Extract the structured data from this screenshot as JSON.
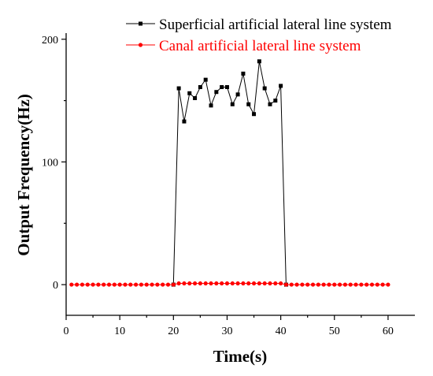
{
  "chart_data": {
    "type": "line",
    "xlabel": "Time(s)",
    "ylabel": "Output Frequency(Hz)",
    "xlim": [
      0,
      65
    ],
    "ylim": [
      -25,
      205
    ],
    "xticks": [
      0,
      10,
      20,
      30,
      40,
      50,
      60
    ],
    "yticks": [
      0,
      100,
      200
    ],
    "grid": false,
    "legend_position": "top-right",
    "series": [
      {
        "name": "Superficial artificial lateral line system",
        "color": "#000000",
        "marker": "square",
        "x": [
          20,
          21,
          22,
          23,
          24,
          25,
          26,
          27,
          28,
          29,
          30,
          31,
          32,
          33,
          34,
          35,
          36,
          37,
          38,
          39,
          40,
          41
        ],
        "y": [
          0,
          160,
          133,
          156,
          152,
          161,
          167,
          146,
          157,
          161,
          161,
          147,
          155,
          172,
          147,
          139,
          182,
          160,
          147,
          150,
          162,
          0
        ]
      },
      {
        "name": "Canal artificial lateral line system",
        "color": "#ff0000",
        "marker": "circle",
        "x": [
          1,
          2,
          3,
          4,
          5,
          6,
          7,
          8,
          9,
          10,
          11,
          12,
          13,
          14,
          15,
          16,
          17,
          18,
          19,
          20,
          21,
          22,
          23,
          24,
          25,
          26,
          27,
          28,
          29,
          30,
          31,
          32,
          33,
          34,
          35,
          36,
          37,
          38,
          39,
          40,
          41,
          42,
          43,
          44,
          45,
          46,
          47,
          48,
          49,
          50,
          51,
          52,
          53,
          54,
          55,
          56,
          57,
          58,
          59,
          60
        ],
        "y": [
          0,
          0,
          0,
          0,
          0,
          0,
          0,
          0,
          0,
          0,
          0,
          0,
          0,
          0,
          0,
          0,
          0,
          0,
          0,
          0,
          1,
          1,
          1,
          1,
          1,
          1,
          1,
          1,
          1,
          1,
          1,
          1,
          1,
          1,
          1,
          1,
          1,
          1,
          1,
          1,
          0,
          0,
          0,
          0,
          0,
          0,
          0,
          0,
          0,
          0,
          0,
          0,
          0,
          0,
          0,
          0,
          0,
          0,
          0,
          0
        ]
      }
    ]
  }
}
